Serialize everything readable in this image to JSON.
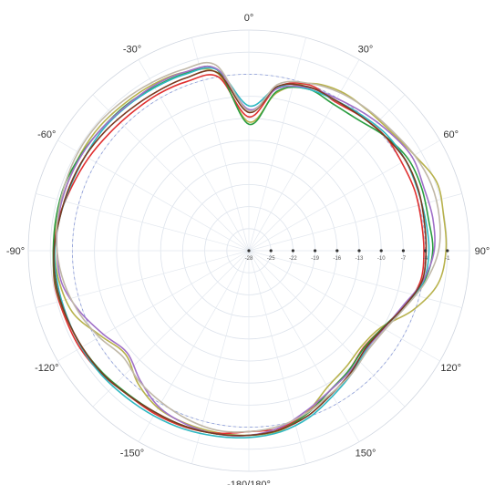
{
  "chart_data": {
    "type": "polar-line",
    "title": "",
    "zero_direction": "top",
    "direction": "clockwise",
    "grid": true,
    "angle_ticks": [
      {
        "deg": 0,
        "label": "0°"
      },
      {
        "deg": 30,
        "label": "30°"
      },
      {
        "deg": 60,
        "label": "60°"
      },
      {
        "deg": 90,
        "label": "90°"
      },
      {
        "deg": 120,
        "label": "120°"
      },
      {
        "deg": 150,
        "label": "150°"
      },
      {
        "deg": 180,
        "label": "-180/180°"
      },
      {
        "deg": -150,
        "label": "-150°"
      },
      {
        "deg": -120,
        "label": "-120°"
      },
      {
        "deg": -90,
        "label": "-90°"
      },
      {
        "deg": -60,
        "label": "-60°"
      },
      {
        "deg": -30,
        "label": "-30°"
      }
    ],
    "radial_range": [
      -28,
      2
    ],
    "radial_ticks": [
      -28,
      -25,
      -22,
      -19,
      -16,
      -13,
      -10,
      -7,
      -4,
      -1
    ],
    "radial_tick_labels": [
      "-28",
      "-25",
      "-22",
      "-19",
      "-16",
      "-13",
      "-10",
      "-7",
      "-4",
      "-1"
    ],
    "reference_circle": -4,
    "series": [
      {
        "color": "#b8b24c",
        "points": [
          [
            0,
            -10.5
          ],
          [
            10,
            -6.2
          ],
          [
            20,
            -3.8
          ],
          [
            30,
            -3.0
          ],
          [
            40,
            -3.0
          ],
          [
            50,
            -2.8
          ],
          [
            60,
            -2.0
          ],
          [
            70,
            -0.8
          ],
          [
            80,
            -1.1
          ],
          [
            90,
            -1.2
          ],
          [
            100,
            -1.9
          ],
          [
            110,
            -4.3
          ],
          [
            120,
            -7.2
          ],
          [
            130,
            -7.9
          ],
          [
            140,
            -7.4
          ],
          [
            150,
            -6.6
          ],
          [
            160,
            -4.7
          ],
          [
            170,
            -3.2
          ],
          [
            180,
            -2.9
          ],
          [
            -170,
            -2.9
          ],
          [
            -160,
            -3.0
          ],
          [
            -150,
            -3.3
          ],
          [
            -140,
            -4.5
          ],
          [
            -130,
            -6.1
          ],
          [
            -120,
            -4.8
          ],
          [
            -110,
            -2.7
          ],
          [
            -100,
            -1.9
          ],
          [
            -90,
            -1.6
          ],
          [
            -80,
            -1.6
          ],
          [
            -70,
            -1.7
          ],
          [
            -60,
            -1.6
          ],
          [
            -50,
            -1.6
          ],
          [
            -40,
            -1.8
          ],
          [
            -30,
            -1.9
          ],
          [
            -20,
            -2.2
          ],
          [
            -10,
            -3.5
          ]
        ]
      },
      {
        "color": "#e03030",
        "points": [
          [
            0,
            -9.8
          ],
          [
            10,
            -5.4
          ],
          [
            20,
            -4.0
          ],
          [
            30,
            -4.6
          ],
          [
            40,
            -4.2
          ],
          [
            50,
            -3.8
          ],
          [
            60,
            -4.0
          ],
          [
            70,
            -4.0
          ],
          [
            80,
            -4.2
          ],
          [
            90,
            -4.2
          ],
          [
            100,
            -4.3
          ],
          [
            110,
            -5.5
          ],
          [
            120,
            -7.0
          ],
          [
            130,
            -7.6
          ],
          [
            140,
            -6.8
          ],
          [
            150,
            -6.0
          ],
          [
            160,
            -4.6
          ],
          [
            170,
            -3.5
          ],
          [
            180,
            -3.4
          ],
          [
            -170,
            -2.8
          ],
          [
            -160,
            -2.5
          ],
          [
            -150,
            -2.4
          ],
          [
            -140,
            -2.4
          ],
          [
            -130,
            -1.9
          ],
          [
            -120,
            -1.5
          ],
          [
            -110,
            -1.4
          ],
          [
            -100,
            -1.2
          ],
          [
            -90,
            -1.5
          ],
          [
            -80,
            -1.8
          ],
          [
            -70,
            -2.4
          ],
          [
            -60,
            -2.8
          ],
          [
            -50,
            -3.2
          ],
          [
            -40,
            -3.4
          ],
          [
            -30,
            -3.4
          ],
          [
            -20,
            -3.5
          ],
          [
            -10,
            -4.0
          ]
        ]
      },
      {
        "color": "#2a9d40",
        "points": [
          [
            0,
            -10.8
          ],
          [
            10,
            -6.0
          ],
          [
            20,
            -4.6
          ],
          [
            30,
            -5.0
          ],
          [
            40,
            -4.8
          ],
          [
            50,
            -3.8
          ],
          [
            60,
            -3.0
          ],
          [
            70,
            -3.0
          ],
          [
            80,
            -3.2
          ],
          [
            90,
            -3.0
          ],
          [
            100,
            -3.8
          ],
          [
            110,
            -5.6
          ],
          [
            120,
            -7.0
          ],
          [
            130,
            -7.5
          ],
          [
            140,
            -6.8
          ],
          [
            150,
            -6.0
          ],
          [
            160,
            -4.5
          ],
          [
            170,
            -3.3
          ],
          [
            180,
            -2.9
          ],
          [
            -170,
            -2.7
          ],
          [
            -160,
            -2.6
          ],
          [
            -150,
            -2.6
          ],
          [
            -140,
            -2.5
          ],
          [
            -130,
            -2.1
          ],
          [
            -120,
            -1.8
          ],
          [
            -110,
            -1.6
          ],
          [
            -100,
            -1.3
          ],
          [
            -90,
            -1.4
          ],
          [
            -80,
            -1.4
          ],
          [
            -70,
            -1.4
          ],
          [
            -60,
            -1.7
          ],
          [
            -50,
            -2.0
          ],
          [
            -40,
            -2.1
          ],
          [
            -30,
            -2.3
          ],
          [
            -20,
            -2.4
          ],
          [
            -10,
            -3.0
          ]
        ]
      },
      {
        "color": "#2fb8c2",
        "points": [
          [
            0,
            -8.3
          ],
          [
            10,
            -5.4
          ],
          [
            20,
            -4.6
          ],
          [
            30,
            -4.4
          ],
          [
            40,
            -4.0
          ],
          [
            50,
            -3.5
          ],
          [
            60,
            -3.4
          ],
          [
            70,
            -3.6
          ],
          [
            80,
            -3.6
          ],
          [
            90,
            -3.5
          ],
          [
            100,
            -3.9
          ],
          [
            110,
            -5.5
          ],
          [
            120,
            -6.9
          ],
          [
            130,
            -7.1
          ],
          [
            140,
            -6.2
          ],
          [
            150,
            -5.2
          ],
          [
            160,
            -3.9
          ],
          [
            170,
            -3.0
          ],
          [
            180,
            -2.6
          ],
          [
            -170,
            -2.4
          ],
          [
            -160,
            -2.2
          ],
          [
            -150,
            -2.1
          ],
          [
            -140,
            -2.0
          ],
          [
            -130,
            -1.8
          ],
          [
            -120,
            -1.7
          ],
          [
            -110,
            -1.7
          ],
          [
            -100,
            -1.6
          ],
          [
            -90,
            -1.6
          ],
          [
            -80,
            -1.9
          ],
          [
            -70,
            -2.2
          ],
          [
            -60,
            -2.3
          ],
          [
            -50,
            -2.2
          ],
          [
            -40,
            -2.3
          ],
          [
            -30,
            -2.4
          ],
          [
            -20,
            -2.5
          ],
          [
            -10,
            -3.0
          ]
        ]
      },
      {
        "color": "#a070c8",
        "points": [
          [
            0,
            -8.8
          ],
          [
            10,
            -5.6
          ],
          [
            20,
            -4.4
          ],
          [
            30,
            -4.1
          ],
          [
            40,
            -3.6
          ],
          [
            50,
            -3.0
          ],
          [
            60,
            -2.4
          ],
          [
            70,
            -2.7
          ],
          [
            80,
            -2.6
          ],
          [
            90,
            -2.8
          ],
          [
            100,
            -4.0
          ],
          [
            110,
            -5.8
          ],
          [
            120,
            -6.8
          ],
          [
            130,
            -7.2
          ],
          [
            140,
            -6.6
          ],
          [
            150,
            -6.0
          ],
          [
            160,
            -4.9
          ],
          [
            170,
            -3.6
          ],
          [
            180,
            -2.9
          ],
          [
            -170,
            -2.7
          ],
          [
            -160,
            -2.9
          ],
          [
            -150,
            -3.5
          ],
          [
            -140,
            -5.0
          ],
          [
            -130,
            -6.4
          ],
          [
            -120,
            -5.2
          ],
          [
            -110,
            -3.6
          ],
          [
            -100,
            -2.2
          ],
          [
            -90,
            -1.9
          ],
          [
            -80,
            -1.7
          ],
          [
            -70,
            -1.7
          ],
          [
            -60,
            -1.8
          ],
          [
            -50,
            -2.0
          ],
          [
            -40,
            -2.2
          ],
          [
            -30,
            -2.1
          ],
          [
            -20,
            -2.2
          ],
          [
            -10,
            -2.9
          ]
        ]
      },
      {
        "color": "#7a3a20",
        "points": [
          [
            0,
            -9.2
          ],
          [
            10,
            -5.3
          ],
          [
            20,
            -4.3
          ],
          [
            30,
            -4.4
          ],
          [
            40,
            -4.2
          ],
          [
            50,
            -3.8
          ],
          [
            60,
            -3.4
          ],
          [
            70,
            -3.5
          ],
          [
            80,
            -3.8
          ],
          [
            90,
            -3.9
          ],
          [
            100,
            -4.1
          ],
          [
            110,
            -5.6
          ],
          [
            120,
            -6.9
          ],
          [
            130,
            -7.3
          ],
          [
            140,
            -6.4
          ],
          [
            150,
            -5.5
          ],
          [
            160,
            -4.2
          ],
          [
            170,
            -3.3
          ],
          [
            180,
            -2.9
          ],
          [
            -170,
            -2.7
          ],
          [
            -160,
            -2.6
          ],
          [
            -150,
            -2.6
          ],
          [
            -140,
            -2.4
          ],
          [
            -130,
            -2.0
          ],
          [
            -120,
            -1.8
          ],
          [
            -110,
            -1.6
          ],
          [
            -100,
            -1.4
          ],
          [
            -90,
            -1.5
          ],
          [
            -80,
            -1.9
          ],
          [
            -70,
            -2.1
          ],
          [
            -60,
            -2.3
          ],
          [
            -50,
            -2.6
          ],
          [
            -40,
            -2.9
          ],
          [
            -30,
            -3.0
          ],
          [
            -20,
            -3.0
          ],
          [
            -10,
            -3.4
          ]
        ]
      },
      {
        "color": "#c0b8a8",
        "points": [
          [
            0,
            -9.0
          ],
          [
            10,
            -5.0
          ],
          [
            20,
            -3.8
          ],
          [
            30,
            -3.2
          ],
          [
            40,
            -2.9
          ],
          [
            50,
            -2.6
          ],
          [
            60,
            -2.0
          ],
          [
            70,
            -1.6
          ],
          [
            80,
            -1.7
          ],
          [
            90,
            -2.2
          ],
          [
            100,
            -3.6
          ],
          [
            110,
            -5.4
          ],
          [
            120,
            -6.6
          ],
          [
            130,
            -6.9
          ],
          [
            140,
            -6.2
          ],
          [
            150,
            -5.6
          ],
          [
            160,
            -4.6
          ],
          [
            170,
            -3.8
          ],
          [
            180,
            -3.4
          ],
          [
            -170,
            -3.2
          ],
          [
            -160,
            -3.6
          ],
          [
            -150,
            -4.2
          ],
          [
            -140,
            -4.8
          ],
          [
            -130,
            -5.6
          ],
          [
            -120,
            -4.5
          ],
          [
            -110,
            -3.4
          ],
          [
            -100,
            -2.5
          ],
          [
            -90,
            -1.9
          ],
          [
            -80,
            -1.6
          ],
          [
            -70,
            -1.4
          ],
          [
            -60,
            -1.2
          ],
          [
            -50,
            -1.2
          ],
          [
            -40,
            -1.4
          ],
          [
            -30,
            -1.6
          ],
          [
            -20,
            -1.8
          ],
          [
            -10,
            -2.4
          ]
        ]
      }
    ]
  }
}
